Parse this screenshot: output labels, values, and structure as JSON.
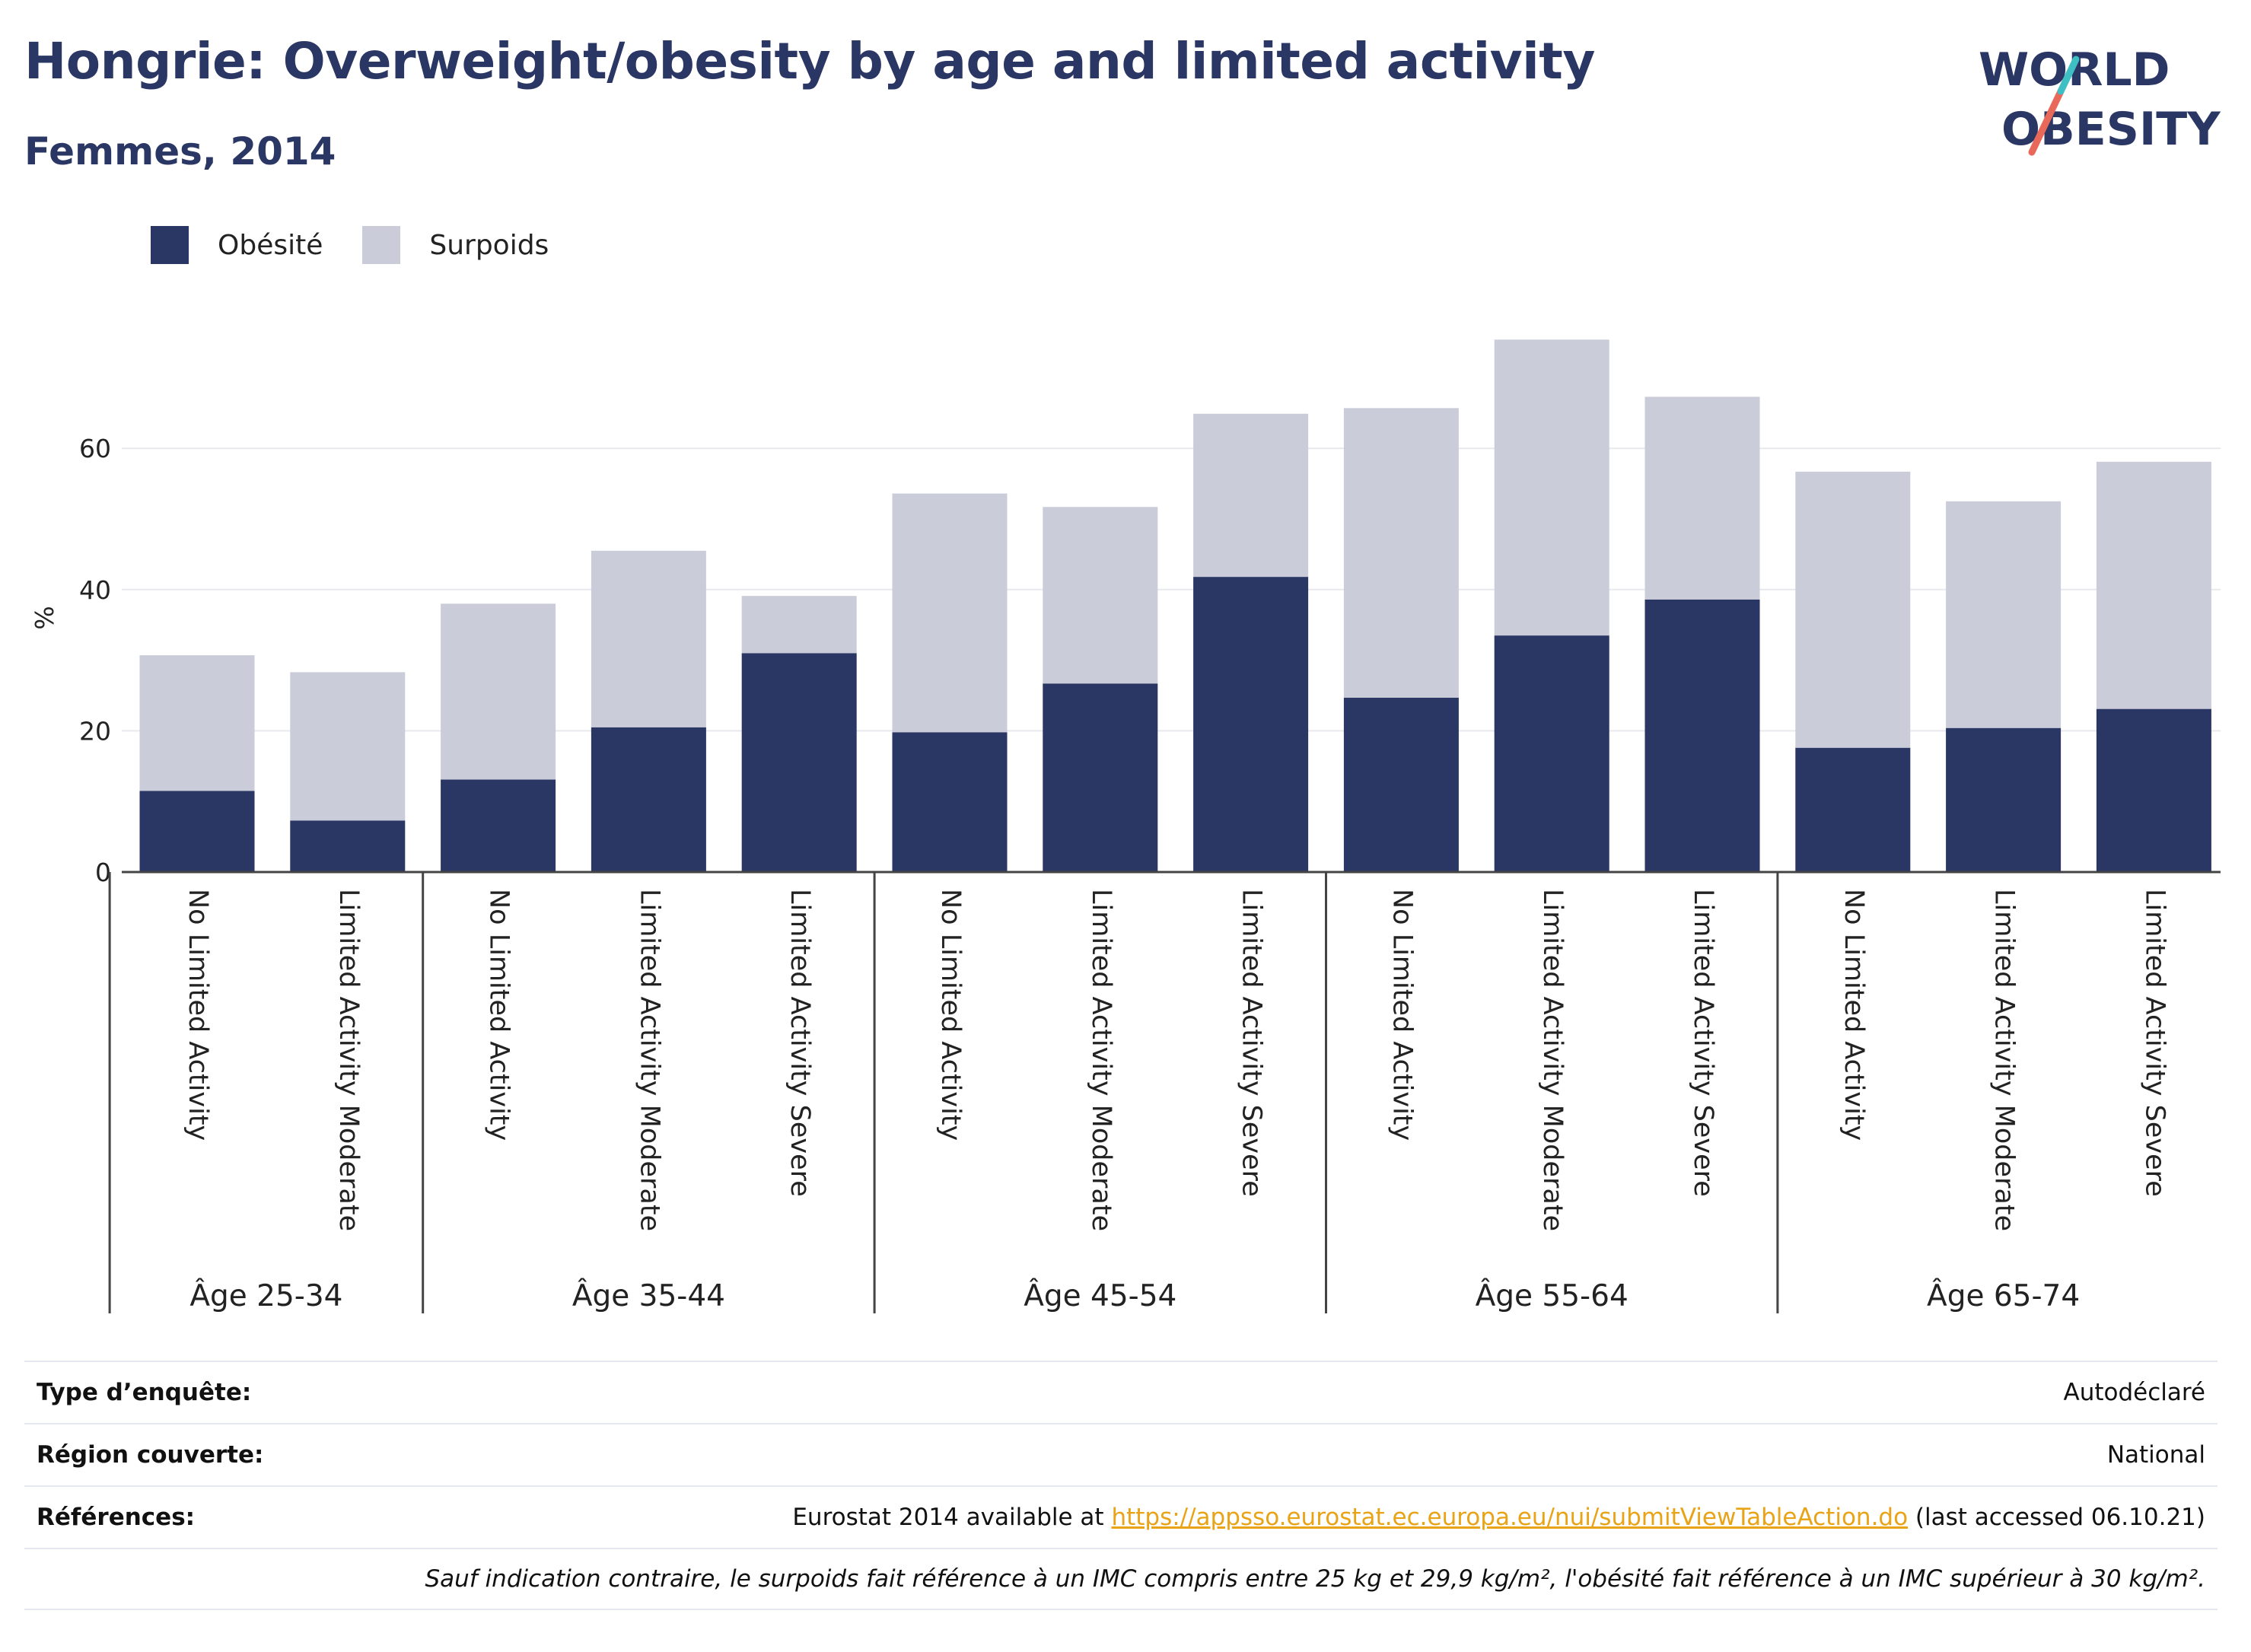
{
  "title": "Hongrie: Overweight/obesity by age and limited activity",
  "subtitle": "Femmes, 2014",
  "logo": {
    "line1": "WORLD",
    "line2": "OBESITY",
    "colors": {
      "text": "#2a3663",
      "slash_teal": "#3dbfc4",
      "slash_coral": "#e8685a"
    }
  },
  "legend": [
    {
      "label": "Obésité",
      "color": "#2a3663"
    },
    {
      "label": "Surpoids",
      "color": "#cacdd9"
    }
  ],
  "chart_data": {
    "type": "bar",
    "stacked": true,
    "ylabel": "%",
    "ylim": [
      0,
      80
    ],
    "yticks": [
      0,
      20,
      40,
      60
    ],
    "grid": true,
    "legend_position": "top-left",
    "groups": [
      {
        "label": "Âge 25-34",
        "categories": [
          "No Limited Activity",
          "Limited Activity Moderate"
        ]
      },
      {
        "label": "Âge 35-44",
        "categories": [
          "No Limited Activity",
          "Limited Activity Moderate",
          "Limited Activity Severe"
        ]
      },
      {
        "label": "Âge 45-54",
        "categories": [
          "No Limited Activity",
          "Limited Activity Moderate",
          "Limited Activity Severe"
        ]
      },
      {
        "label": "Âge 55-64",
        "categories": [
          "No Limited Activity",
          "Limited Activity Moderate",
          "Limited Activity Severe"
        ]
      },
      {
        "label": "Âge 65-74",
        "categories": [
          "No Limited Activity",
          "Limited Activity Moderate",
          "Limited Activity Severe"
        ]
      }
    ],
    "series": [
      {
        "name": "Obésité",
        "color": "#2a3663",
        "values": [
          11.5,
          7.3,
          13.1,
          20.5,
          31.0,
          19.8,
          26.7,
          41.8,
          24.7,
          33.5,
          38.6,
          17.6,
          20.4,
          23.1
        ]
      },
      {
        "name": "Surpoids",
        "color": "#cacdd9",
        "values": [
          19.2,
          21.0,
          24.9,
          25.0,
          8.1,
          33.8,
          25.0,
          23.1,
          41.0,
          41.9,
          28.7,
          39.1,
          32.1,
          35.0
        ]
      }
    ]
  },
  "info": {
    "survey_type_label": "Type d’enquête:",
    "survey_type_value": "Autodéclaré",
    "region_label": "Région couverte:",
    "region_value": "National",
    "references_label": "Références:",
    "references_prefix": "Eurostat 2014 available at ",
    "references_link": "https://appsso.eurostat.ec.europa.eu/nui/submitViewTableAction.do",
    "references_suffix": " (last accessed 06.10.21)",
    "note": "Sauf indication contraire, le surpoids fait référence à un IMC compris entre 25 kg et 29,9 kg/m², l'obésité fait référence à un IMC supérieur à 30 kg/m²."
  }
}
